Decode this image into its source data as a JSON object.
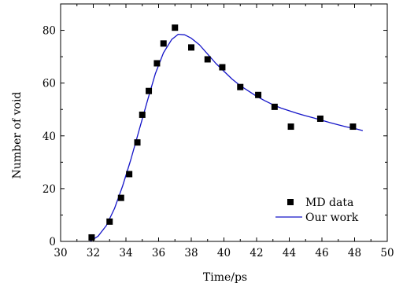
{
  "chart_data": {
    "type": "scatter",
    "title": "",
    "xlabel": "Time/ps",
    "ylabel": "Number of void",
    "xlim": [
      30,
      50
    ],
    "ylim": [
      0,
      90
    ],
    "x_ticks": [
      30,
      32,
      34,
      36,
      38,
      40,
      42,
      44,
      46,
      48,
      50
    ],
    "y_ticks": [
      0,
      20,
      40,
      60,
      80
    ],
    "x_tick_labels": [
      "30",
      "32",
      "34",
      "36",
      "38",
      "40",
      "42",
      "44",
      "46",
      "48",
      "50"
    ],
    "y_tick_labels": [
      "0",
      "20",
      "40",
      "60",
      "80"
    ],
    "grid": false,
    "legend_position": "bottom-right",
    "series": [
      {
        "name": "MD data",
        "style": "square-markers",
        "color": "#000000",
        "x": [
          31.9,
          33.0,
          33.7,
          34.2,
          34.7,
          35.0,
          35.4,
          35.9,
          36.3,
          37.0,
          38.0,
          39.0,
          39.9,
          41.0,
          42.1,
          43.1,
          44.1,
          45.9,
          47.9
        ],
        "y": [
          1.5,
          7.5,
          16.5,
          25.5,
          37.5,
          48.0,
          57.0,
          67.5,
          75.0,
          81.0,
          73.5,
          69.0,
          66.0,
          58.5,
          55.5,
          51.0,
          43.5,
          46.5,
          43.5
        ]
      },
      {
        "name": "Our work",
        "style": "line",
        "color": "#1414c8",
        "x": [
          31.8,
          32.3,
          32.8,
          33.3,
          33.8,
          34.3,
          34.8,
          35.3,
          35.8,
          36.3,
          36.8,
          37.2,
          37.6,
          38.0,
          38.5,
          39.0,
          39.5,
          40.0,
          40.5,
          41.0,
          41.5,
          42.0,
          42.5,
          43.0,
          43.5,
          44.0,
          44.5,
          45.0,
          45.5,
          46.0,
          46.5,
          47.0,
          47.5,
          48.0,
          48.5
        ],
        "y": [
          0.0,
          2.0,
          6.0,
          12.5,
          21.0,
          31.0,
          42.0,
          53.0,
          63.5,
          71.5,
          76.5,
          78.5,
          78.3,
          77.0,
          74.5,
          71.0,
          67.5,
          64.5,
          61.5,
          59.0,
          57.0,
          55.0,
          53.3,
          51.8,
          50.5,
          49.5,
          48.5,
          47.6,
          46.8,
          45.9,
          45.0,
          44.2,
          43.4,
          42.8,
          42.0
        ]
      }
    ]
  }
}
